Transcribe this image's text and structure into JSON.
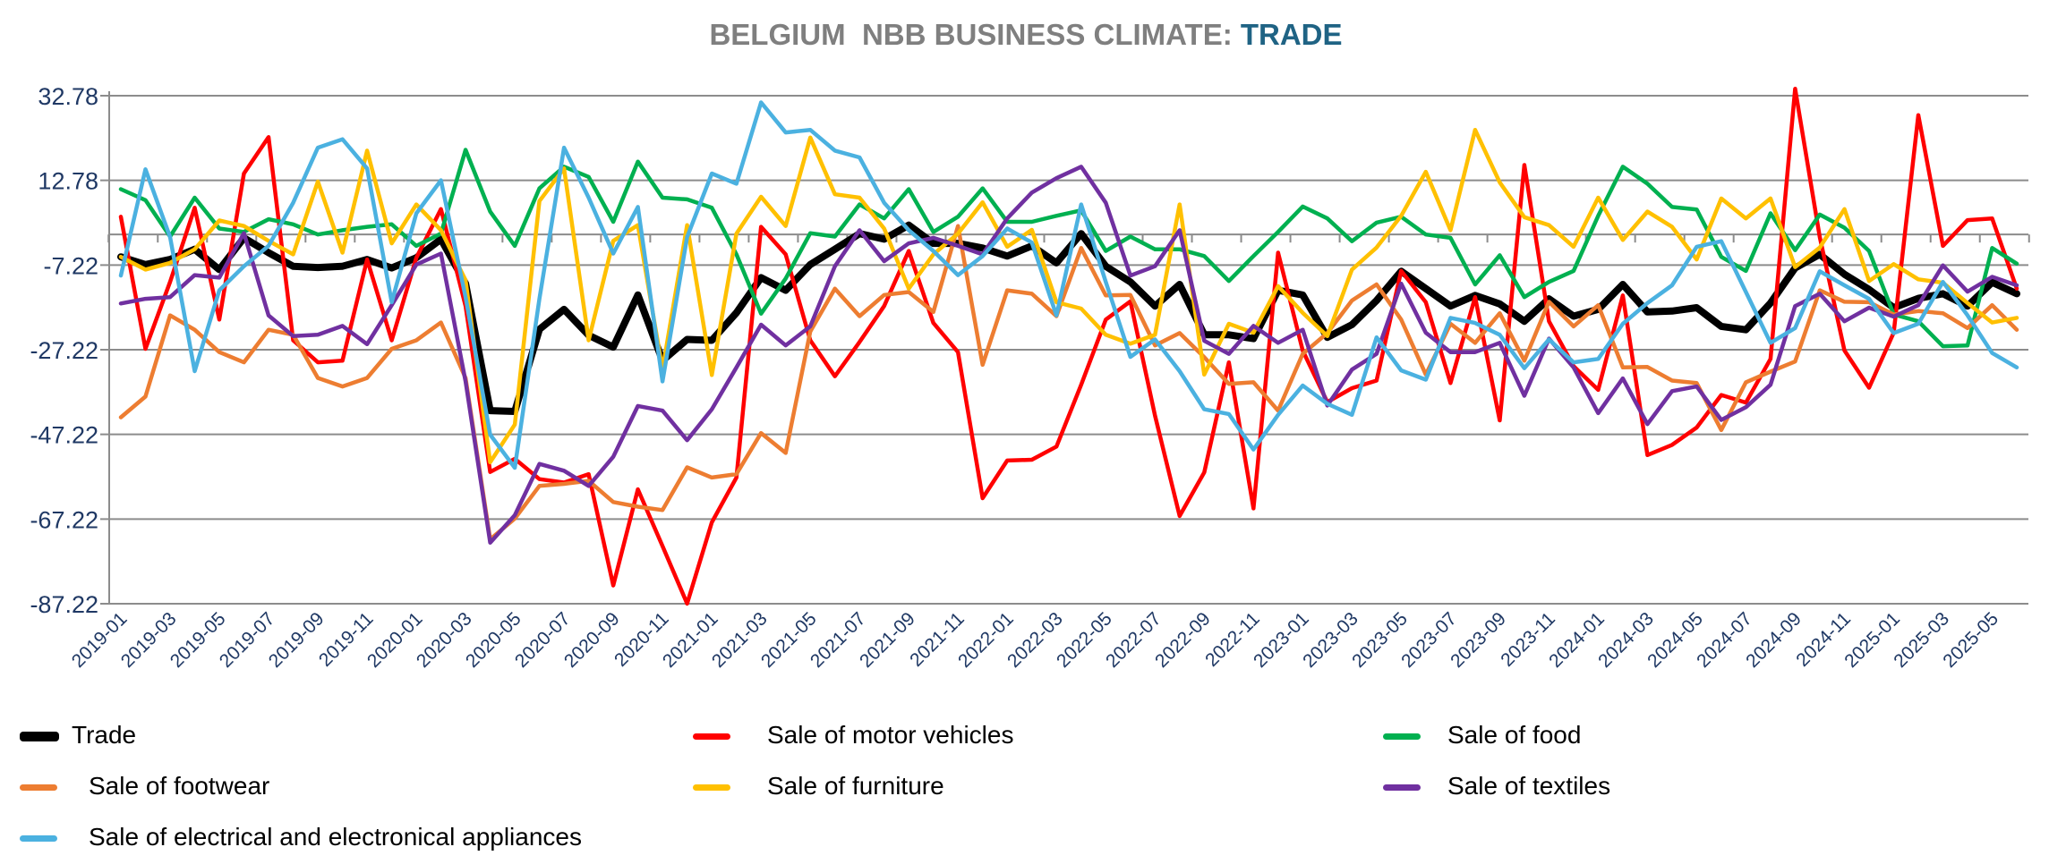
{
  "chart_data": {
    "type": "line",
    "title_prefix": "BELGIUM  NBB BUSINESS CLIMATE: ",
    "title_highlight": "TRADE",
    "xlabel": "",
    "ylabel": "",
    "frequency": "monthly",
    "first_month": "2019-01",
    "last_month": "2025-06",
    "x_tick_labels": [
      "2019-01",
      "2019-03",
      "2019-05",
      "2019-07",
      "2019-09",
      "2019-11",
      "2020-01",
      "2020-03",
      "2020-05",
      "2020-07",
      "2020-09",
      "2020-11",
      "2021-01",
      "2021-03",
      "2021-05",
      "2021-07",
      "2021-09",
      "2021-11",
      "2022-01",
      "2022-03",
      "2022-05",
      "2022-07",
      "2022-09",
      "2022-11",
      "2023-01",
      "2023-03",
      "2023-05",
      "2023-07",
      "2023-09",
      "2023-11",
      "2024-01",
      "2024-03",
      "2024-05",
      "2024-07",
      "2024-09",
      "2024-11",
      "2025-01",
      "2025-03",
      "2025-05"
    ],
    "y_tick_labels": [
      "32.78",
      "12.78",
      "-7.22",
      "-27.22",
      "-47.22",
      "-67.22",
      "-87.22"
    ],
    "y_ticks": [
      32.78,
      12.78,
      -7.22,
      -27.22,
      -47.22,
      -67.22,
      -87.22
    ],
    "ylim": [
      -87.22,
      32.78
    ],
    "x_axis_crosses_at": 0,
    "grid": true,
    "legend_position": "bottom",
    "series": [
      {
        "name": "Trade",
        "color": "#000000",
        "values": [
          -5.3,
          -7.1,
          -5.9,
          -3.5,
          -8.3,
          -0.8,
          -4.3,
          -7.5,
          -7.8,
          -7.5,
          -5.9,
          -7.9,
          -5.5,
          -1.1,
          -11.6,
          -41.6,
          -41.8,
          -22.4,
          -17.7,
          -23.8,
          -26.6,
          -14.3,
          -29.8,
          -24.8,
          -25.0,
          -18.5,
          -10.2,
          -13.2,
          -7.1,
          -3.5,
          0.2,
          -1.1,
          2.2,
          -2.1,
          -2.1,
          -3.2,
          -5.1,
          -2.7,
          -6.7,
          0.2,
          -7.5,
          -11.2,
          -16.9,
          -11.8,
          -23.7,
          -23.7,
          -24.6,
          -13.2,
          -14.3,
          -24.3,
          -21.3,
          -15.6,
          -8.7,
          -12.8,
          -16.9,
          -14.4,
          -16.4,
          -20.5,
          -15.2,
          -19.3,
          -17.7,
          -11.8,
          -18.3,
          -18.1,
          -17.3,
          -21.7,
          -22.5,
          -16.2,
          -7.9,
          -4.7,
          -9.4,
          -13.0,
          -17.3,
          -15.1,
          -14.0,
          -16.9,
          -11.3,
          -14.0
        ]
      },
      {
        "name": "Sale of motor vehicles",
        "color": "#FF0000",
        "values": [
          4.2,
          -27.0,
          -11.2,
          6.3,
          -20.1,
          14.4,
          23.0,
          -25.0,
          -30.2,
          -29.8,
          -5.9,
          -25.0,
          -5.5,
          6.0,
          -16.9,
          -56.1,
          -53.0,
          -57.8,
          -58.6,
          -56.6,
          -82.9,
          -60.2,
          -73.6,
          -87.2,
          -68.0,
          -57.4,
          1.8,
          -4.7,
          -25.0,
          -33.5,
          -25.4,
          -16.9,
          -3.9,
          -20.9,
          -27.8,
          -62.3,
          -53.4,
          -53.2,
          -50.1,
          -35.5,
          -20.1,
          -15.8,
          -42.8,
          -66.5,
          -56.2,
          -30.2,
          -64.7,
          -4.3,
          -27.4,
          -39.6,
          -36.3,
          -34.5,
          -8.6,
          -16.0,
          -35.1,
          -14.8,
          -43.9,
          16.4,
          -20.5,
          -31.1,
          -36.7,
          -14.4,
          -52.1,
          -49.7,
          -45.6,
          -37.9,
          -39.7,
          -29.4,
          34.4,
          -0.6,
          -27.4,
          -36.2,
          -23.2,
          28.2,
          -2.7,
          3.4,
          3.8,
          -12.8
        ]
      },
      {
        "name": "Sale of food",
        "color": "#00B050",
        "values": [
          10.7,
          8.1,
          -0.5,
          8.7,
          1.4,
          0.6,
          3.6,
          2.4,
          0.0,
          1.0,
          1.8,
          2.4,
          -2.7,
          0.2,
          20.0,
          5.4,
          -2.7,
          10.9,
          16.0,
          13.6,
          3.0,
          17.2,
          8.7,
          8.3,
          6.3,
          -4.7,
          -18.7,
          -10.4,
          0.3,
          -0.5,
          7.1,
          3.8,
          10.7,
          0.6,
          4.2,
          10.9,
          3.0,
          3.0,
          4.4,
          5.7,
          -3.9,
          -0.5,
          -3.5,
          -3.5,
          -5.1,
          -11.0,
          -5.1,
          0.6,
          6.6,
          3.8,
          -1.6,
          2.8,
          4.2,
          0.0,
          -0.8,
          -11.8,
          -4.9,
          -14.8,
          -11.2,
          -8.6,
          4.4,
          16.0,
          12.0,
          6.5,
          5.9,
          -5.3,
          -8.6,
          5.0,
          -3.7,
          4.7,
          1.6,
          -3.9,
          -18.9,
          -20.5,
          -26.4,
          -26.2,
          -3.2,
          -6.9
        ]
      },
      {
        "name": "Sale of footwear",
        "color": "#ED7D31",
        "values": [
          -43.2,
          -38.3,
          -19.1,
          -22.5,
          -27.8,
          -30.2,
          -22.5,
          -23.7,
          -33.9,
          -35.9,
          -33.9,
          -27.0,
          -25.0,
          -20.8,
          -33.9,
          -72.0,
          -67.1,
          -59.4,
          -58.9,
          -58.2,
          -63.2,
          -64.3,
          -65.1,
          -55.0,
          -57.4,
          -56.6,
          -46.9,
          -51.6,
          -22.9,
          -12.8,
          -19.3,
          -14.3,
          -13.6,
          -18.3,
          2.0,
          -30.8,
          -13.2,
          -14.0,
          -19.3,
          -3.2,
          -14.4,
          -14.3,
          -26.2,
          -23.3,
          -29.0,
          -35.3,
          -34.9,
          -41.6,
          -28.2,
          -23.3,
          -15.6,
          -11.8,
          -20.1,
          -33.1,
          -21.1,
          -25.6,
          -18.6,
          -29.8,
          -15.9,
          -21.7,
          -16.7,
          -31.4,
          -31.3,
          -34.5,
          -35.1,
          -46.2,
          -34.9,
          -32.4,
          -30.0,
          -13.2,
          -15.9,
          -16.0,
          -18.9,
          -18.1,
          -18.6,
          -22.1,
          -16.7,
          -22.5
        ]
      },
      {
        "name": "Sale of furniture",
        "color": "#FFC000",
        "values": [
          -5.3,
          -8.3,
          -6.7,
          -3.5,
          3.3,
          2.0,
          -1.5,
          -4.7,
          12.5,
          -4.3,
          19.8,
          -2.1,
          7.1,
          1.0,
          -10.8,
          -53.8,
          -44.9,
          7.9,
          15.6,
          -25.0,
          -1.5,
          2.2,
          -31.9,
          2.2,
          -33.2,
          0.2,
          8.9,
          2.0,
          22.9,
          9.5,
          8.7,
          1.4,
          -12.8,
          -4.7,
          0.2,
          7.6,
          -2.9,
          1.1,
          -16.0,
          -17.5,
          -23.7,
          -25.8,
          -23.7,
          7.1,
          -33.1,
          -21.1,
          -23.2,
          -12.2,
          -18.5,
          -24.0,
          -8.3,
          -3.1,
          4.4,
          14.8,
          1.0,
          24.7,
          12.3,
          4.1,
          2.2,
          -2.9,
          8.7,
          -1.3,
          5.4,
          1.8,
          -5.9,
          8.5,
          3.8,
          8.5,
          -7.7,
          -3.1,
          6.0,
          -11.0,
          -7.0,
          -10.6,
          -11.4,
          -16.2,
          -20.8,
          -19.7
        ]
      },
      {
        "name": "Sale of textiles",
        "color": "#7030A0",
        "values": [
          -16.3,
          -15.2,
          -14.8,
          -9.6,
          -10.2,
          0.3,
          -19.1,
          -24.0,
          -23.7,
          -21.6,
          -25.9,
          -16.7,
          -7.1,
          -4.5,
          -34.7,
          -72.8,
          -66.3,
          -54.2,
          -55.8,
          -59.4,
          -52.5,
          -40.5,
          -41.6,
          -48.6,
          -41.3,
          -31.4,
          -21.3,
          -26.2,
          -21.7,
          -7.5,
          1.0,
          -6.3,
          -2.1,
          -0.8,
          -2.7,
          -4.7,
          3.8,
          9.9,
          13.3,
          16.0,
          7.5,
          -9.7,
          -7.5,
          1.0,
          -25.1,
          -28.2,
          -21.6,
          -25.6,
          -22.5,
          -40.4,
          -31.9,
          -28.2,
          -11.6,
          -23.2,
          -27.8,
          -27.8,
          -25.6,
          -38.1,
          -24.6,
          -31.4,
          -42.2,
          -34.0,
          -44.8,
          -37.0,
          -35.9,
          -43.8,
          -40.8,
          -35.5,
          -16.9,
          -14.0,
          -20.5,
          -17.3,
          -19.4,
          -16.7,
          -7.3,
          -13.5,
          -10.0,
          -12.0
        ]
      },
      {
        "name": "Sale of electrical and electronical appliances",
        "color": "#4BB1E0",
        "values": [
          -9.7,
          15.4,
          -0.6,
          -32.3,
          -13.2,
          -7.5,
          -2.7,
          7.5,
          20.5,
          22.5,
          15.6,
          -16.0,
          5.0,
          12.8,
          -14.8,
          -47.3,
          -55.1,
          -15.2,
          20.5,
          8.7,
          -4.5,
          6.5,
          -34.7,
          -0.6,
          14.4,
          12.0,
          31.2,
          24.1,
          24.7,
          19.8,
          18.2,
          7.5,
          1.0,
          -3.9,
          -9.6,
          -5.1,
          1.4,
          -1.9,
          -19.1,
          7.1,
          -11.2,
          -28.9,
          -24.8,
          -32.3,
          -41.3,
          -42.4,
          -50.8,
          -42.6,
          -35.7,
          -40.0,
          -42.6,
          -24.3,
          -32.1,
          -34.3,
          -19.7,
          -20.9,
          -23.7,
          -31.6,
          -24.8,
          -30.2,
          -29.4,
          -21.1,
          -16.2,
          -12.0,
          -2.9,
          -1.6,
          -13.6,
          -25.6,
          -22.1,
          -8.7,
          -12.0,
          -15.2,
          -23.3,
          -21.1,
          -11.2,
          -19.1,
          -28.0,
          -31.4
        ]
      }
    ]
  },
  "colors": {
    "title_gray": "#7F7F7F",
    "title_highlight": "#1F6384",
    "axis_text": "#1F3864",
    "gridline": "#8C8C8C"
  }
}
